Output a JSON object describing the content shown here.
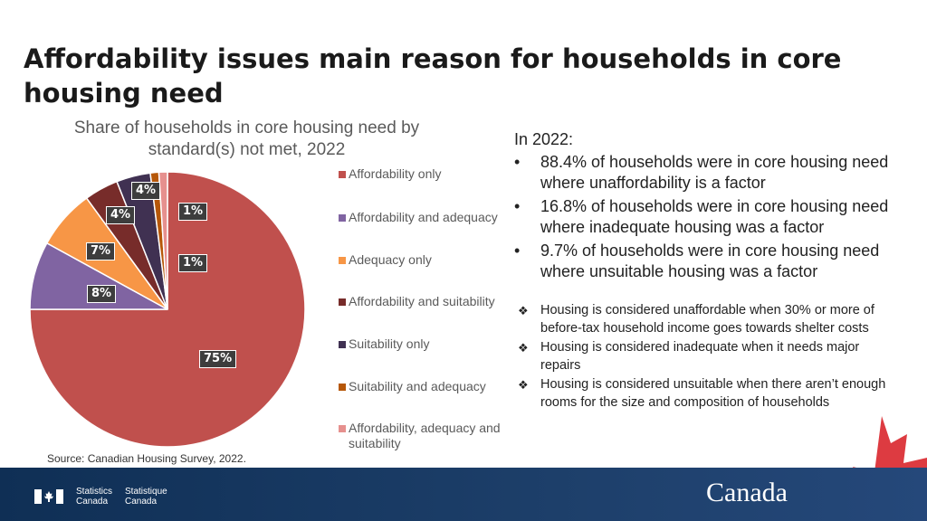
{
  "title": "Affordability issues main reason for households in core housing need",
  "chart_data": {
    "type": "pie",
    "title": "Share of households in core housing need by standard(s) not met, 2022",
    "slices": [
      {
        "label": "Affordability only",
        "value": 75,
        "display": "75%",
        "color": "#c0504d"
      },
      {
        "label": "Affordability and adequacy",
        "value": 8,
        "display": "8%",
        "color": "#8064a2"
      },
      {
        "label": "Adequacy only",
        "value": 7,
        "display": "7%",
        "color": "#f79646"
      },
      {
        "label": "Affordability and suitability",
        "value": 4,
        "display": "4%",
        "color": "#772c2a"
      },
      {
        "label": "Suitability only",
        "value": 4,
        "display": "4%",
        "color": "#403152"
      },
      {
        "label": "Suitability and adequacy",
        "value": 1,
        "display": "1%",
        "color": "#b65708"
      },
      {
        "label": "Affordability, adequacy and suitability",
        "value": 1,
        "display": "1%",
        "color": "#e6908e"
      }
    ]
  },
  "source": "Source: Canadian Housing Survey, 2022.",
  "panel": {
    "intro": "In 2022:",
    "bullet_marker": "•",
    "bullets": [
      "88.4% of households were in core housing need where unaffordability is a factor",
      "16.8% of households were in core housing need where inadequate housing was a factor",
      "9.7% of households were in core housing need where unsuitable housing was a factor"
    ],
    "note_marker": "❖",
    "notes": [
      "Housing is considered unaffordable when 30% or more of before-tax household income goes towards shelter costs",
      "Housing is considered inadequate when it needs major repairs",
      "Housing is considered unsuitable when there aren’t enough rooms for the size and composition of households"
    ]
  },
  "footer": {
    "org_en": [
      "Statistics",
      "Canada"
    ],
    "org_fr": [
      "Statistique",
      "Canada"
    ],
    "wordmark": "Canada",
    "flag_color": "#ffffff"
  }
}
